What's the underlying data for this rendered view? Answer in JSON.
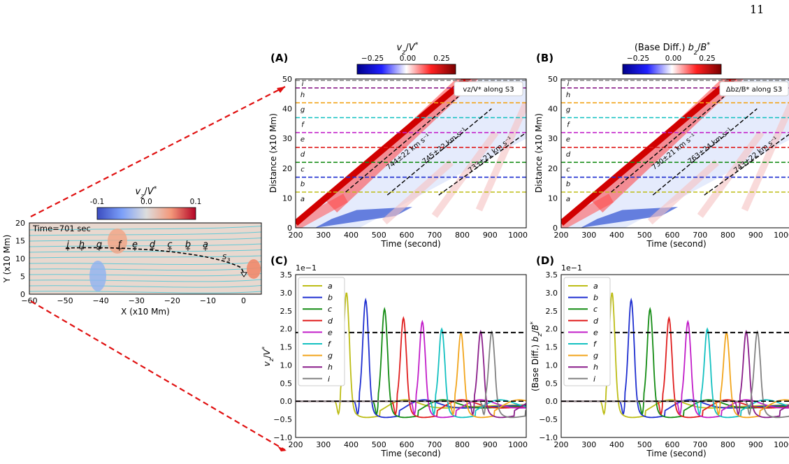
{
  "page_number": "11",
  "colors": {
    "a": "#bdbd16",
    "b": "#1f2fd0",
    "c": "#148c14",
    "d": "#e01e1e",
    "e": "#c21ec9",
    "f": "#14c1c1",
    "g": "#f2a51c",
    "h": "#8a1e8a",
    "i": "#828282",
    "arrow": "#e01010",
    "threshold": "#000000"
  },
  "left_panel": {
    "colorbar_label": "v_z/V*",
    "colorbar_ticks": [
      "-0.1",
      "0.0",
      "0.1"
    ],
    "time_text": "Time=701 sec",
    "xlabel": "X (x10 Mm)",
    "ylabel": "Y (x10 Mm)",
    "xticks": [
      "-60",
      "-50",
      "-40",
      "-30",
      "-20",
      "-10",
      "0"
    ],
    "yticks": [
      "0",
      "5",
      "10",
      "15",
      "20"
    ],
    "s3_label": "S3",
    "point_letters": [
      "i",
      "h",
      "g",
      "f",
      "e",
      "d",
      "c",
      "b",
      "a"
    ]
  },
  "panels": {
    "A": {
      "label": "(A)",
      "colorbar_label": "v_z/V*",
      "colorbar_ticks": [
        "-0.25",
        "0.00",
        "0.25"
      ],
      "legend": "v_z/V* along S3",
      "speeds": [
        "744±22 km s⁻¹",
        "745±22 km s⁻¹",
        "733±21 km s⁻¹"
      ]
    },
    "B": {
      "label": "(B)",
      "colorbar_label": "(Base Diff.) b_z/B*",
      "colorbar_ticks": [
        "-0.25",
        "0.00",
        "0.25"
      ],
      "legend": "Δb_z/B* along S3",
      "speeds": [
        "730±21 km s⁻¹",
        "763±24 km s⁻¹",
        "743±22 km s⁻¹"
      ]
    },
    "C": {
      "label": "(C)",
      "ylabel": "v_z/V*",
      "scale_label": "1e−1"
    },
    "D": {
      "label": "(D)",
      "ylabel": "(Base Diff.) b_z/B*",
      "scale_label": "1e−1"
    }
  },
  "distance_time": {
    "xlabel": "Time (second)",
    "ylabel": "Distance (x10 Mm)",
    "xticks": [
      "200",
      "300",
      "400",
      "500",
      "600",
      "700",
      "800",
      "900",
      "1000"
    ],
    "yticks": [
      "0",
      "10",
      "20",
      "30",
      "40",
      "50"
    ],
    "xlim": [
      200,
      1030
    ],
    "ylim": [
      0,
      50
    ]
  },
  "chart_data": [
    {
      "type": "line",
      "panel": "C",
      "xlabel": "Time (second)",
      "ylabel": "v_z/V*",
      "xlim": [
        200,
        1030
      ],
      "ylim": [
        -1.0,
        3.5
      ],
      "yticks": [
        "−1.0",
        "−0.5",
        "0.0",
        "0.5",
        "1.0",
        "1.5",
        "2.0",
        "2.5",
        "3.0",
        "3.5"
      ],
      "xticks": [
        "200",
        "300",
        "400",
        "500",
        "600",
        "700",
        "800",
        "900",
        "1000"
      ],
      "threshold": 1.9,
      "legend": [
        "a",
        "b",
        "c",
        "d",
        "e",
        "f",
        "g",
        "h",
        "i"
      ],
      "series": [
        {
          "name": "a",
          "peak_time": 383,
          "peak": 3.0
        },
        {
          "name": "b",
          "peak_time": 452,
          "peak": 2.8
        },
        {
          "name": "c",
          "peak_time": 520,
          "peak": 2.55
        },
        {
          "name": "d",
          "peak_time": 588,
          "peak": 2.3
        },
        {
          "name": "e",
          "peak_time": 656,
          "peak": 2.2
        },
        {
          "name": "f",
          "peak_time": 726,
          "peak": 2.0
        },
        {
          "name": "g",
          "peak_time": 795,
          "peak": 1.9
        },
        {
          "name": "h",
          "peak_time": 866,
          "peak": 1.93
        },
        {
          "name": "i",
          "peak_time": 906,
          "peak": 1.92
        }
      ]
    },
    {
      "type": "line",
      "panel": "D",
      "xlabel": "Time (second)",
      "ylabel": "(Base Diff.) b_z/B*",
      "xlim": [
        200,
        1030
      ],
      "ylim": [
        -1.0,
        3.5
      ],
      "yticks": [
        "−1.0",
        "−0.5",
        "0.0",
        "0.5",
        "1.0",
        "1.5",
        "2.0",
        "2.5",
        "3.0",
        "3.5"
      ],
      "xticks": [
        "200",
        "300",
        "400",
        "500",
        "600",
        "700",
        "800",
        "900",
        "1000"
      ],
      "threshold": 1.9,
      "legend": [
        "a",
        "b",
        "c",
        "d",
        "e",
        "f",
        "g",
        "h",
        "i"
      ],
      "series": [
        {
          "name": "a",
          "peak_time": 383,
          "peak": 3.0
        },
        {
          "name": "b",
          "peak_time": 452,
          "peak": 2.8
        },
        {
          "name": "c",
          "peak_time": 520,
          "peak": 2.55
        },
        {
          "name": "d",
          "peak_time": 588,
          "peak": 2.3
        },
        {
          "name": "e",
          "peak_time": 656,
          "peak": 2.2
        },
        {
          "name": "f",
          "peak_time": 726,
          "peak": 2.0
        },
        {
          "name": "g",
          "peak_time": 795,
          "peak": 1.9
        },
        {
          "name": "h",
          "peak_time": 866,
          "peak": 1.93
        },
        {
          "name": "i",
          "peak_time": 906,
          "peak": 1.92
        }
      ]
    },
    {
      "type": "heatmap",
      "panel": "A",
      "xlabel": "Time (second)",
      "ylabel": "Distance (x10 Mm)",
      "xlim": [
        200,
        1030
      ],
      "ylim": [
        0,
        50
      ],
      "slit_heights": {
        "a": 12,
        "b": 17,
        "c": 22,
        "d": 27,
        "e": 32,
        "f": 37,
        "g": 42,
        "h": 47,
        "i": 49.5
      }
    },
    {
      "type": "heatmap",
      "panel": "B",
      "xlabel": "Time (second)",
      "ylabel": "Distance (x10 Mm)",
      "xlim": [
        200,
        1030
      ],
      "ylim": [
        0,
        50
      ],
      "slit_heights": {
        "a": 12,
        "b": 17,
        "c": 22,
        "d": 27,
        "e": 32,
        "f": 37,
        "g": 42,
        "h": 47,
        "i": 49.5
      }
    }
  ]
}
